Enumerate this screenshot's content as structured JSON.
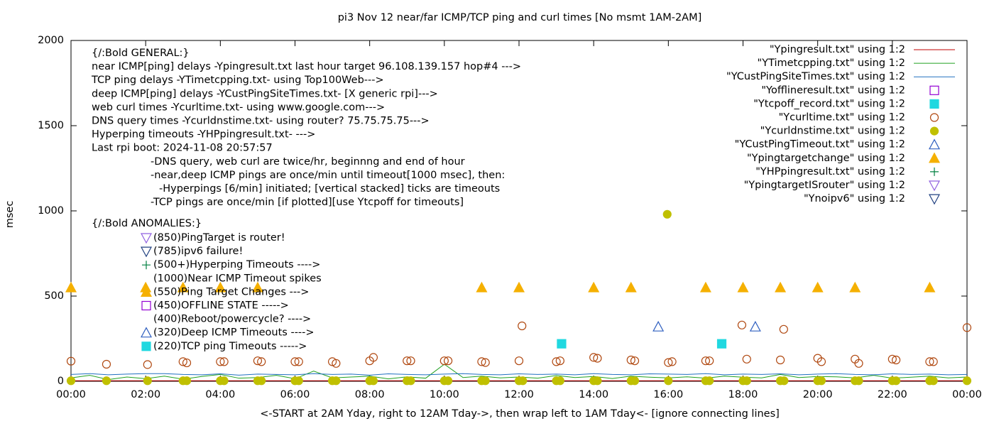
{
  "chart_data": {
    "type": "line",
    "title": "pi3 Nov 12  near/far ICMP/TCP ping and curl times [No msmt 1AM-2AM]",
    "x_label": "<-START at 2AM Yday, right to 12AM Tday->, then wrap left to 1AM Tday<- [ignore connecting lines]",
    "y_label": "msec",
    "xlim": [
      0,
      24
    ],
    "xticks": [
      {
        "value": 0,
        "label": "00:00"
      },
      {
        "value": 2,
        "label": "02:00"
      },
      {
        "value": 4,
        "label": "04:00"
      },
      {
        "value": 6,
        "label": "06:00"
      },
      {
        "value": 8,
        "label": "08:00"
      },
      {
        "value": 10,
        "label": "10:00"
      },
      {
        "value": 12,
        "label": "12:00"
      },
      {
        "value": 14,
        "label": "14:00"
      },
      {
        "value": 16,
        "label": "16:00"
      },
      {
        "value": 18,
        "label": "18:00"
      },
      {
        "value": 20,
        "label": "20:00"
      },
      {
        "value": 22,
        "label": "22:00"
      },
      {
        "value": 24,
        "label": "00:00"
      }
    ],
    "ylim": [
      0,
      2000
    ],
    "yticks": [
      0,
      500,
      1000,
      1500,
      2000
    ],
    "legend": "top right",
    "annotations": {
      "general": [
        "{/:Bold GENERAL:}",
        "near ICMP[ping] delays -Ypingresult.txt last hour target 96.108.139.157 hop#4 --->",
        "TCP ping delays -YTimetcpping.txt- using Top100Web--->",
        "deep ICMP[ping] delays -YCustPingSiteTimes.txt- [X generic rpi]--->",
        "web curl times -Ycurltime.txt- using www.google.com--->",
        "DNS query times -Ycurldnstime.txt- using router? 75.75.75.75--->",
        "Hyperping timeouts -YHPpingresult.txt- --->",
        "Last rpi boot: 2024-11-08 20:57:57",
        "-DNS query, web curl are twice/hr, beginnng and end of hour",
        "-near,deep ICMP pings are once/min until timeout[1000 msec], then:",
        "-Hyperpings [6/min] initiated; [vertical stacked] ticks are timeouts",
        "-TCP pings are once/min [if plotted][use Ytcpoff for timeouts]"
      ],
      "anomalies": [
        "{/:Bold ANOMALIES:}",
        "(850)PingTarget is router!",
        "(785)ipv6 failure!",
        "(500+)Hyperping Timeouts ---->",
        "(1000)Near ICMP Timeout spikes",
        "(550)Ping Target Changes --->",
        "(450)OFFLINE STATE ----->",
        "(400)Reboot/powercycle? ---->",
        "(320)Deep ICMP Timeouts ---->",
        "(220)TCP ping Timeouts ----->"
      ]
    },
    "series": [
      {
        "name": "\"Ypingresult.txt\" using 1:2",
        "style": "line",
        "color": "#c00000",
        "x": [
          0,
          6,
          12,
          18,
          24
        ],
        "values": [
          3,
          3,
          3,
          3,
          3
        ]
      },
      {
        "name": "\"YTimetcpping.txt\" using 1:2",
        "style": "line",
        "color": "#20a020",
        "x": [
          0,
          0.5,
          1,
          1.5,
          2,
          2.5,
          3,
          3.5,
          4,
          4.5,
          5,
          5.5,
          6,
          6.5,
          7,
          7.5,
          8,
          8.5,
          9,
          9.5,
          10,
          10.5,
          11,
          11.5,
          12,
          12.5,
          13,
          13.5,
          14,
          14.5,
          15,
          15.5,
          16,
          16.5,
          17,
          17.5,
          18,
          18.5,
          19,
          19.5,
          20,
          20.5,
          21,
          21.5,
          22,
          22.5,
          23,
          23.5,
          24
        ],
        "values": [
          20,
          35,
          10,
          25,
          15,
          30,
          12,
          28,
          40,
          18,
          22,
          35,
          15,
          60,
          20,
          25,
          30,
          14,
          26,
          18,
          100,
          22,
          30,
          20,
          25,
          18,
          34,
          22,
          28,
          16,
          30,
          24,
          20,
          26,
          18,
          30,
          24,
          20,
          40,
          22,
          28,
          26,
          20,
          35,
          18,
          24,
          30,
          20,
          25
        ]
      },
      {
        "name": "\"YCustPingSiteTimes.txt\" using 1:2",
        "style": "line",
        "color": "#2070c0",
        "x": [
          0,
          0.5,
          1,
          1.5,
          2,
          2.5,
          3,
          3.5,
          4,
          4.5,
          5,
          5.5,
          6,
          6.5,
          7,
          7.5,
          8,
          8.5,
          9,
          9.5,
          10,
          10.5,
          11,
          11.5,
          12,
          12.5,
          13,
          13.5,
          14,
          14.5,
          15,
          15.5,
          16,
          16.5,
          17,
          17.5,
          18,
          18.5,
          19,
          19.5,
          20,
          20.5,
          21,
          21.5,
          22,
          22.5,
          23,
          23.5,
          24
        ],
        "values": [
          40,
          45,
          38,
          42,
          45,
          45,
          40,
          38,
          44,
          36,
          42,
          40,
          38,
          45,
          40,
          42,
          36,
          44,
          40,
          38,
          42,
          45,
          40,
          38,
          44,
          40,
          42,
          38,
          45,
          40,
          38,
          44,
          42,
          40,
          45,
          38,
          42,
          40,
          44,
          38,
          42,
          45,
          40,
          38,
          44,
          40,
          42,
          38,
          40
        ]
      },
      {
        "name": "\"Yofflineresult.txt\" using 1:2",
        "style": "square-open",
        "color": "#9400d3",
        "x": [],
        "values": []
      },
      {
        "name": "\"Ytcpoff_record.txt\" using 1:2",
        "style": "square-filled",
        "color": "#20d8e0",
        "x": [
          13.14,
          17.43
        ],
        "values": [
          220,
          220
        ]
      },
      {
        "name": "\"Ycurltime.txt\" using 1:2",
        "style": "circle-open",
        "color": "#b04810",
        "x": [
          0,
          0.95,
          2.05,
          3.0,
          3.1,
          4.0,
          4.1,
          5.0,
          5.1,
          6.0,
          6.1,
          7.0,
          7.1,
          8.0,
          8.1,
          9.0,
          9.1,
          10.0,
          10.1,
          11.0,
          11.1,
          12.0,
          12.08,
          13.0,
          13.1,
          14.0,
          14.1,
          15.0,
          15.1,
          16.0,
          16.1,
          17.0,
          17.1,
          17.97,
          18.1,
          19.0,
          19.09,
          20.0,
          20.1,
          21.0,
          21.1,
          22.0,
          22.1,
          23.0,
          23.1,
          24.0
        ],
        "values": [
          118,
          100,
          98,
          115,
          108,
          115,
          115,
          120,
          115,
          115,
          115,
          115,
          105,
          120,
          140,
          120,
          120,
          120,
          120,
          115,
          110,
          120,
          325,
          115,
          120,
          140,
          135,
          125,
          120,
          110,
          115,
          120,
          120,
          330,
          130,
          125,
          305,
          135,
          115,
          130,
          105,
          130,
          125,
          115,
          115,
          315
        ]
      },
      {
        "name": "\"Ycurldnstime.txt\" using 1:2",
        "style": "circle-filled",
        "color": "#c0c000",
        "x": [
          0,
          0.95,
          2.05,
          3.0,
          3.1,
          4.0,
          4.1,
          5.0,
          5.1,
          6.0,
          6.1,
          7.0,
          7.1,
          8.0,
          8.1,
          9.0,
          9.1,
          10.0,
          10.1,
          11.0,
          11.1,
          12.0,
          12.1,
          13.0,
          13.1,
          14.0,
          14.1,
          15.0,
          15.1,
          15.97,
          16.0,
          17.0,
          17.1,
          18.0,
          18.1,
          19.0,
          19.1,
          20.0,
          20.1,
          21.0,
          21.1,
          22.0,
          22.1,
          23.0,
          23.1,
          24.0
        ],
        "values": [
          3,
          3,
          3,
          3,
          3,
          3,
          3,
          3,
          3,
          3,
          3,
          3,
          3,
          3,
          3,
          3,
          3,
          3,
          3,
          3,
          3,
          3,
          3,
          3,
          3,
          3,
          3,
          3,
          3,
          980,
          3,
          3,
          3,
          3,
          3,
          3,
          3,
          3,
          3,
          3,
          3,
          3,
          3,
          3,
          3,
          3
        ]
      },
      {
        "name": "\"YCustPingTimeout.txt\" using 1:2",
        "style": "triangle-open",
        "color": "#3060c0",
        "x": [
          15.73,
          18.33
        ],
        "values": [
          320,
          320
        ]
      },
      {
        "name": "\"Ypingtargetchange\" using 1:2",
        "style": "triangle-filled",
        "color": "#f5b000",
        "x": [
          0,
          2,
          3,
          4,
          5,
          11,
          12,
          14,
          15,
          17,
          18,
          19,
          20,
          21,
          23
        ],
        "values": [
          550,
          550,
          550,
          550,
          550,
          550,
          550,
          550,
          550,
          550,
          550,
          550,
          550,
          550,
          550
        ]
      },
      {
        "name": "\"YHPpingresult.txt\" using 1:2",
        "style": "plus",
        "color": "#008040",
        "x": [],
        "values": []
      },
      {
        "name": "\"YpingtargetISrouter\" using 1:2",
        "style": "triangle-down-open",
        "color": "#9060e0",
        "x": [],
        "values": []
      },
      {
        "name": "\"Ynoipv6\" using 1:2",
        "style": "triangle-down-open",
        "color": "#204080",
        "x": [],
        "values": []
      }
    ]
  }
}
